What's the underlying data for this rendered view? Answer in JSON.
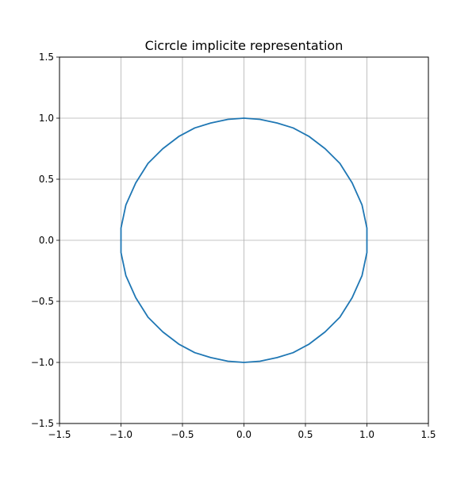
{
  "chart_data": {
    "type": "line",
    "title": "Cicrcle implicite representation",
    "xlabel": "",
    "ylabel": "",
    "xlim": [
      -1.5,
      1.5
    ],
    "ylim": [
      -1.5,
      1.5
    ],
    "grid": true,
    "xticks": [
      -1.5,
      -1.0,
      -0.5,
      0.0,
      0.5,
      1.0,
      1.5
    ],
    "yticks": [
      -1.5,
      -1.0,
      -0.5,
      0.0,
      0.5,
      1.0,
      1.5
    ],
    "xtick_labels": [
      "−1.5",
      "−1.0",
      "−0.5",
      "0.0",
      "0.5",
      "1.0",
      "1.5"
    ],
    "ytick_labels": [
      "−1.5",
      "−1.0",
      "−0.5",
      "0.0",
      "0.5",
      "1.0",
      "1.5"
    ],
    "series": [
      {
        "color": "#1f77b4",
        "x": [
          1.0,
          1.0,
          0.96,
          0.88,
          0.78,
          0.66,
          0.53,
          0.4,
          0.27,
          0.13,
          0.0,
          -0.13,
          -0.27,
          -0.4,
          -0.53,
          -0.66,
          -0.78,
          -0.88,
          -0.96,
          -1.0,
          -1.0,
          -0.96,
          -0.88,
          -0.78,
          -0.66,
          -0.53,
          -0.4,
          -0.27,
          -0.13,
          0.0,
          0.13,
          0.27,
          0.4,
          0.53,
          0.66,
          0.78,
          0.88,
          0.96,
          1.0,
          1.0
        ],
        "y": [
          0.1,
          -0.1,
          -0.29,
          -0.47,
          -0.63,
          -0.75,
          -0.85,
          -0.92,
          -0.96,
          -0.99,
          -1.0,
          -0.99,
          -0.96,
          -0.92,
          -0.85,
          -0.75,
          -0.63,
          -0.47,
          -0.29,
          -0.1,
          0.1,
          0.29,
          0.47,
          0.63,
          0.75,
          0.85,
          0.92,
          0.96,
          0.99,
          1.0,
          0.99,
          0.96,
          0.92,
          0.85,
          0.75,
          0.63,
          0.47,
          0.29,
          0.1,
          -0.1
        ]
      }
    ]
  }
}
